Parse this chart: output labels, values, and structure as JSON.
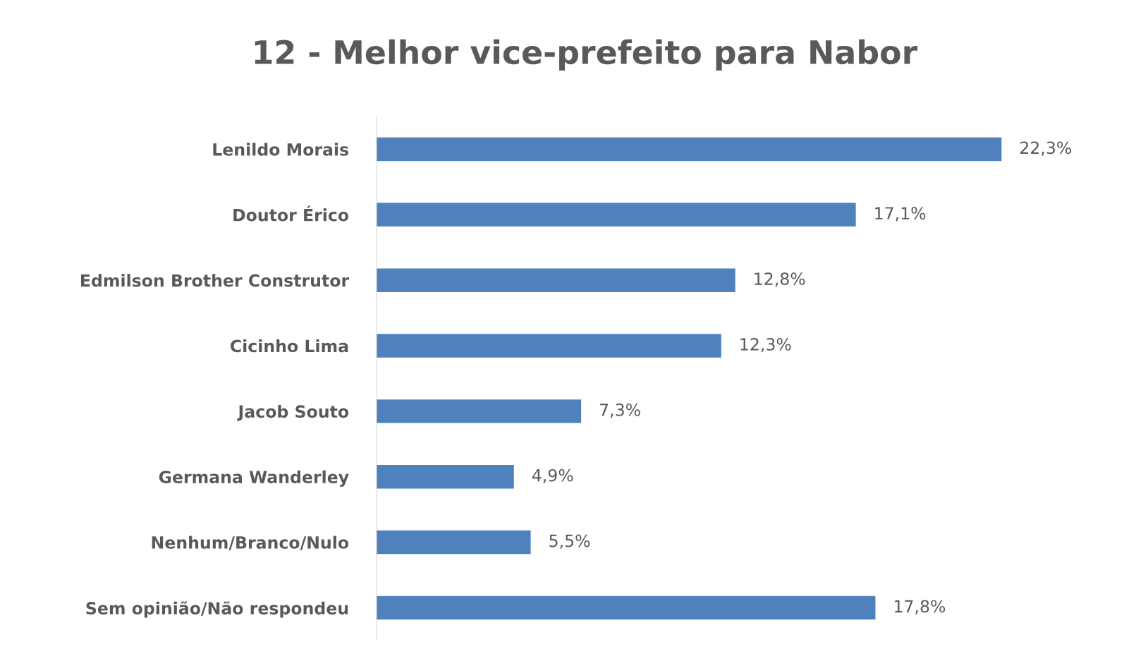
{
  "chart_data": {
    "type": "bar",
    "orientation": "horizontal",
    "title": "12 - Melhor vice-prefeito para Nabor",
    "categories": [
      "Lenildo Morais",
      "Doutor Érico",
      "Edmilson Brother Construtor",
      "Cicinho Lima",
      "Jacob Souto",
      "Germana Wanderley",
      "Nenhum/Branco/Nulo",
      "Sem opinião/Não respondeu"
    ],
    "values": [
      22.3,
      17.1,
      12.8,
      12.3,
      7.3,
      4.9,
      5.5,
      17.8
    ],
    "value_labels": [
      "22,3%",
      "17,1%",
      "12,8%",
      "12,3%",
      "7,3%",
      "4,9%",
      "5,5%",
      "17,8%"
    ],
    "color": "#4f81bd",
    "grid": false,
    "legend": false
  }
}
